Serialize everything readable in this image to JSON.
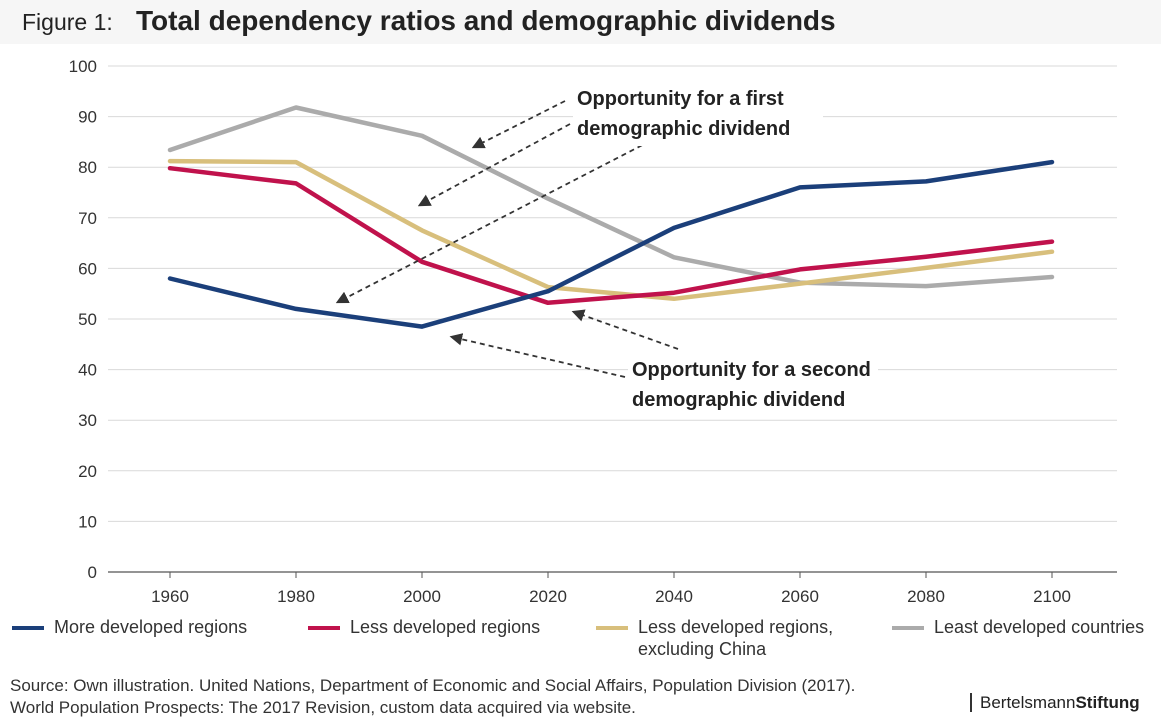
{
  "figure": {
    "label": "Figure 1:",
    "title": "Total dependency ratios and demographic dividends"
  },
  "chart_data": {
    "type": "line",
    "title": "Total dependency ratios and demographic dividends",
    "xlabel": "",
    "ylabel": "",
    "x": [
      1960,
      1980,
      2000,
      2020,
      2040,
      2060,
      2080,
      2100
    ],
    "ylim": [
      0,
      100
    ],
    "yticks": [
      0,
      10,
      20,
      30,
      40,
      50,
      60,
      70,
      80,
      90,
      100
    ],
    "grid": true,
    "legend_placement": "bottom",
    "series": [
      {
        "name": "More developed regions",
        "color": "#1b3f7a",
        "values": [
          58,
          52,
          48.5,
          55.5,
          68,
          76,
          77.2,
          81
        ]
      },
      {
        "name": "Less developed regions",
        "color": "#c0124c",
        "values": [
          79.8,
          76.8,
          61.3,
          53.2,
          55.2,
          59.8,
          62.3,
          65.3
        ]
      },
      {
        "name": "Less developed regions, excluding China",
        "color": "#d8bf7c",
        "values": [
          81.2,
          81,
          67.5,
          56.3,
          54,
          57,
          60.1,
          63.3
        ]
      },
      {
        "name": "Least developed countries",
        "color": "#ababab",
        "values": [
          83.4,
          91.8,
          86.2,
          73.8,
          62.2,
          57.2,
          56.5,
          58.3
        ]
      }
    ],
    "annotations": [
      {
        "text": [
          "Opportunity for a first",
          "demographic dividend"
        ]
      },
      {
        "text": [
          "Opportunity for a second",
          "demographic dividend"
        ]
      }
    ]
  },
  "legend": [
    {
      "label": "More developed regions",
      "label2": "",
      "color": "#1b3f7a"
    },
    {
      "label": "Less developed regions",
      "label2": "",
      "color": "#c0124c"
    },
    {
      "label": "Less developed regions,",
      "label2": "excluding China",
      "color": "#d8bf7c"
    },
    {
      "label": "Least developed countries",
      "label2": "",
      "color": "#ababab"
    }
  ],
  "source": {
    "line1": "Source: Own illustration. United Nations, Department of Economic and Social Affairs, Population Division (2017).",
    "line2": "World Population Prospects: The 2017 Revision, custom data acquired via website."
  },
  "brand": {
    "part1": "Bertelsmann",
    "part2": "Stiftung"
  }
}
